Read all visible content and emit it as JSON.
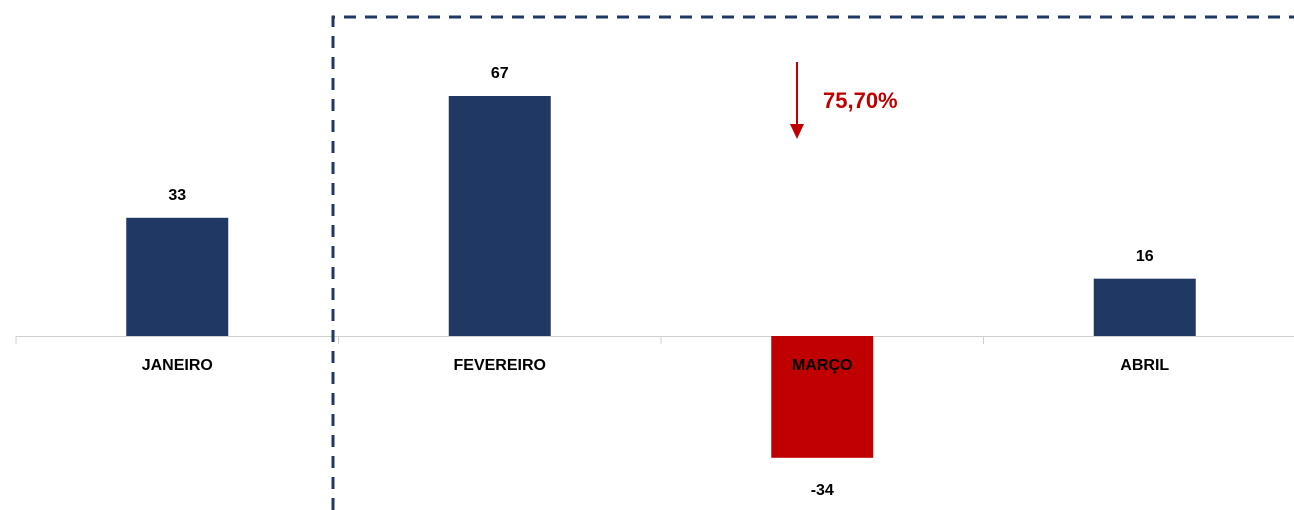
{
  "chart_data": {
    "type": "bar",
    "categories": [
      "JANEIRO",
      "FEVEREIRO",
      "MARÇO",
      "ABRIL"
    ],
    "values": [
      33,
      67,
      -34,
      16
    ],
    "colors": [
      "#1f3864",
      "#1f3864",
      "#c00000",
      "#1f3864"
    ],
    "annotation": "75,70%",
    "annotation_color": "#c00000"
  }
}
